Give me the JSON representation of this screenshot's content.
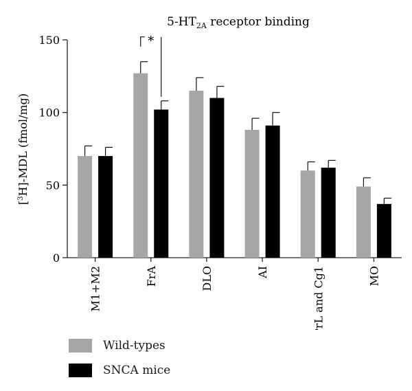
{
  "chart_data": {
    "type": "bar",
    "title": "5-HT",
    "title_sub": "2A",
    "title_suffix": " receptor binding",
    "ylabel_prefix": "[",
    "ylabel_sup": "3",
    "ylabel_suffix": "H]-MDL (fmol/mg)",
    "xlabel": "",
    "ylim": [
      0,
      150
    ],
    "yticks": [
      0,
      50,
      100,
      150
    ],
    "categories": [
      "M1+M2",
      "FrA",
      "DLO",
      "AI",
      "PrL and Cg1",
      "MO"
    ],
    "series": [
      {
        "name": "Wild-types",
        "color": "#a6a6a8",
        "values": [
          70,
          127,
          115,
          88,
          60,
          49
        ],
        "errors": [
          7,
          8,
          9,
          8,
          6,
          6
        ]
      },
      {
        "name": "SNCA mice",
        "color": "#000000",
        "values": [
          70,
          102,
          110,
          91,
          62,
          37
        ],
        "errors": [
          6,
          6,
          8,
          9,
          5,
          4
        ]
      }
    ],
    "annotations": [
      {
        "text": "*",
        "category": "FrA"
      }
    ],
    "legend_position": "bottom-left",
    "grid": false
  }
}
